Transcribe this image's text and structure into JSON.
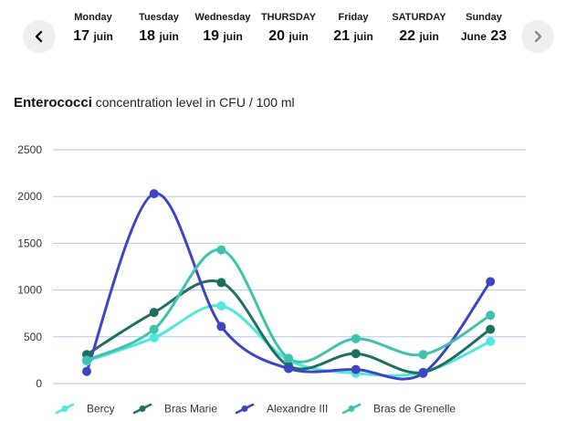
{
  "nav": {
    "prev_icon": "chevron-left-icon",
    "next_icon": "chevron-right-icon"
  },
  "days": [
    {
      "name": "Monday",
      "prefix": "",
      "number": "17",
      "month": "juin"
    },
    {
      "name": "Tuesday",
      "prefix": "",
      "number": "18",
      "month": "juin"
    },
    {
      "name": "Wednesday",
      "prefix": "",
      "number": "19",
      "month": "juin"
    },
    {
      "name": "THURSDAY",
      "prefix": "",
      "number": "20",
      "month": "juin"
    },
    {
      "name": "Friday",
      "prefix": "",
      "number": "21",
      "month": "juin"
    },
    {
      "name": "SATURDAY",
      "prefix": "",
      "number": "22",
      "month": "juin"
    },
    {
      "name": "Sunday",
      "prefix": "June",
      "number": "23",
      "month": ""
    }
  ],
  "chart_title": {
    "bold": "Enterococci",
    "rest": " concentration level in CFU / 100 ml"
  },
  "colors": {
    "grid": "#b8c2ee",
    "axis_text": "#333333"
  },
  "chart_data": {
    "type": "line",
    "title": "Enterococci concentration level in CFU / 100 ml",
    "ylim": [
      0,
      2500
    ],
    "yticks": [
      "0",
      "500",
      "1000",
      "1500",
      "2000",
      "2500"
    ],
    "ytick_values": [
      0,
      500,
      1000,
      1500,
      2000,
      2500
    ],
    "points_per_series": 7,
    "legend_position": "bottom",
    "series": [
      {
        "name": "Bercy",
        "color": "#4ee8d8",
        "values": [
          240,
          490,
          830,
          250,
          110,
          120,
          450
        ]
      },
      {
        "name": "Bras Marie",
        "color": "#1f6e62",
        "values": [
          310,
          760,
          1080,
          190,
          320,
          120,
          580
        ]
      },
      {
        "name": "Alexandre III",
        "color": "#3d45c4",
        "values": [
          130,
          2030,
          610,
          160,
          150,
          110,
          1090
        ]
      },
      {
        "name": "Bras de Grenelle",
        "color": "#3ec2ae",
        "values": [
          250,
          580,
          1430,
          270,
          480,
          310,
          730
        ]
      }
    ]
  }
}
